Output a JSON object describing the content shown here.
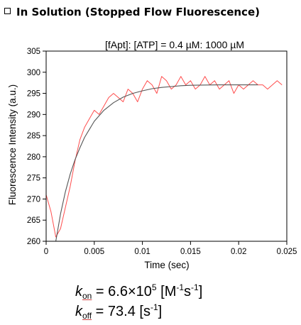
{
  "heading": {
    "text": "In Solution (Stopped Flow Fluorescence)"
  },
  "chart_data": {
    "type": "line",
    "title": "[fApt]: [ATP] = 0.4 µM: 1000 µM",
    "xlabel": "Time (sec)",
    "ylabel": "Fluorescence Intensity (a.u.)",
    "xlim": [
      0,
      0.025
    ],
    "ylim": [
      260,
      305
    ],
    "xticks": [
      0,
      0.005,
      0.01,
      0.015,
      0.02,
      0.025
    ],
    "xtick_labels": [
      "0",
      "0.005",
      "0.01",
      "0.015",
      "0.02",
      "0.025"
    ],
    "yticks": [
      260,
      265,
      270,
      275,
      280,
      285,
      290,
      295,
      300,
      305
    ],
    "ytick_labels": [
      "260",
      "265",
      "270",
      "275",
      "280",
      "285",
      "290",
      "295",
      "300",
      "305"
    ],
    "grid": false,
    "series": [
      {
        "color": "#ff4d4d",
        "style": "noisy-data",
        "x": [
          0,
          0.0005,
          0.001,
          0.0015,
          0.002,
          0.0025,
          0.003,
          0.0035,
          0.004,
          0.0045,
          0.005,
          0.0055,
          0.006,
          0.0065,
          0.007,
          0.0075,
          0.008,
          0.0085,
          0.009,
          0.0095,
          0.01,
          0.0105,
          0.011,
          0.0115,
          0.012,
          0.0125,
          0.013,
          0.0135,
          0.014,
          0.0145,
          0.015,
          0.0155,
          0.016,
          0.0165,
          0.017,
          0.0175,
          0.018,
          0.0185,
          0.019,
          0.0195,
          0.02,
          0.0205,
          0.021,
          0.0215,
          0.022,
          0.0225,
          0.023,
          0.0235,
          0.024,
          0.0245
        ],
        "y": [
          271,
          267,
          261,
          263,
          268,
          273,
          279,
          284,
          287,
          289,
          291,
          290,
          292,
          294,
          295,
          294,
          293,
          296,
          295,
          293,
          296,
          298,
          297,
          295,
          299,
          298,
          296,
          297,
          299,
          297,
          298,
          296,
          297,
          299,
          297,
          298,
          296,
          297,
          298,
          295,
          297,
          296,
          297,
          298,
          297,
          297,
          296,
          297,
          298,
          297
        ]
      },
      {
        "color": "#555555",
        "style": "fit",
        "x": [
          0.001,
          0.0015,
          0.002,
          0.0025,
          0.003,
          0.0035,
          0.004,
          0.005,
          0.006,
          0.007,
          0.008,
          0.009,
          0.01,
          0.011,
          0.012,
          0.013,
          0.014,
          0.015,
          0.016,
          0.018,
          0.02,
          0.022
        ],
        "y": [
          260,
          266.5,
          271.7,
          275.9,
          279.3,
          282.1,
          284.6,
          288.4,
          291,
          292.8,
          294.1,
          295,
          295.6,
          296.1,
          296.4,
          296.6,
          296.8,
          296.9,
          296.95,
          297,
          297,
          297
        ]
      }
    ]
  },
  "equations": {
    "kon_symbol": "k",
    "kon_sub": "on",
    "kon_value": " = 6.6×10",
    "kon_exp": "5",
    "kon_unit_a": " [M",
    "kon_unit_a_exp": "-1",
    "kon_unit_b": "s",
    "kon_unit_b_exp": "-1",
    "kon_unit_c": "]",
    "koff_symbol": "k",
    "koff_sub": "off",
    "koff_value": " = 73.4 [s",
    "koff_unit_exp": "-1",
    "koff_unit_c": "]"
  }
}
